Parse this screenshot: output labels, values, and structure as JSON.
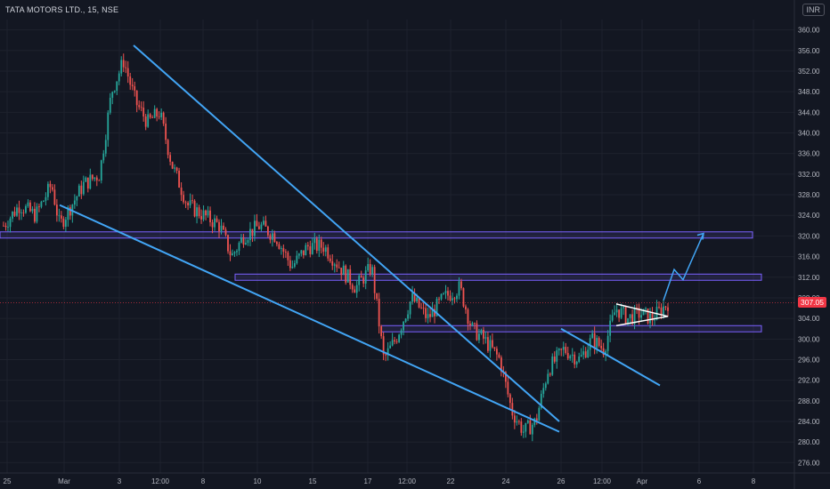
{
  "header": {
    "symbol": "TATA MOTORS LTD., 15, NSE",
    "currency": "INR"
  },
  "colors": {
    "background": "#131722",
    "grid": "#1e222d",
    "up": "#26a69a",
    "down": "#ef5350",
    "trendline": "#42a5f5",
    "zone": "#7b61ff",
    "price_tag": "#f23645"
  },
  "chart_data": {
    "type": "candlestick",
    "ylim": [
      274,
      362
    ],
    "y_ticks": [
      276,
      280,
      284,
      288,
      292,
      296,
      300,
      304,
      308,
      312,
      316,
      320,
      324,
      328,
      332,
      336,
      340,
      344,
      348,
      352,
      356,
      360
    ],
    "y_tick_labels": [
      "276.00",
      "280.00",
      "284.00",
      "288.00",
      "292.00",
      "296.00",
      "300.00",
      "304.00",
      "308.00",
      "312.00",
      "316.00",
      "320.00",
      "324.00",
      "328.00",
      "332.00",
      "336.00",
      "340.00",
      "344.00",
      "348.00",
      "352.00",
      "356.00",
      "360.00"
    ],
    "x_tick_labels": [
      "25",
      "Mar",
      "3",
      "12:00",
      "8",
      "10",
      "15",
      "17",
      "12:00",
      "22",
      "24",
      "26",
      "12:00",
      "Apr",
      "6",
      "8"
    ],
    "last_price": 307.05,
    "last_price_label": "307.05",
    "price_path": [
      [
        0,
        322
      ],
      [
        0.02,
        326
      ],
      [
        0.04,
        324
      ],
      [
        0.06,
        330
      ],
      [
        0.07,
        322
      ],
      [
        0.085,
        326
      ],
      [
        0.1,
        330
      ],
      [
        0.12,
        332
      ],
      [
        0.135,
        348
      ],
      [
        0.15,
        354
      ],
      [
        0.165,
        346
      ],
      [
        0.18,
        342
      ],
      [
        0.195,
        344
      ],
      [
        0.21,
        334
      ],
      [
        0.23,
        326
      ],
      [
        0.25,
        324
      ],
      [
        0.27,
        322
      ],
      [
        0.285,
        316
      ],
      [
        0.3,
        320
      ],
      [
        0.32,
        322
      ],
      [
        0.34,
        320
      ],
      [
        0.36,
        314
      ],
      [
        0.38,
        318
      ],
      [
        0.4,
        318
      ],
      [
        0.42,
        314
      ],
      [
        0.44,
        310
      ],
      [
        0.46,
        314
      ],
      [
        0.475,
        296
      ],
      [
        0.49,
        300
      ],
      [
        0.51,
        308
      ],
      [
        0.53,
        304
      ],
      [
        0.55,
        308
      ],
      [
        0.57,
        310
      ],
      [
        0.585,
        302
      ],
      [
        0.6,
        300
      ],
      [
        0.62,
        296
      ],
      [
        0.635,
        286
      ],
      [
        0.65,
        282
      ],
      [
        0.665,
        284
      ],
      [
        0.68,
        294
      ],
      [
        0.7,
        298
      ],
      [
        0.72,
        296
      ],
      [
        0.735,
        300
      ],
      [
        0.75,
        298
      ],
      [
        0.765,
        306
      ],
      [
        0.78,
        304
      ],
      [
        0.795,
        305
      ],
      [
        0.81,
        304
      ],
      [
        0.83,
        307
      ]
    ],
    "trendlines": [
      {
        "from": [
          "3",
          357
        ],
        "to": [
          "26",
          284
        ]
      },
      {
        "from": [
          "Mar",
          326
        ],
        "to": [
          "26",
          282
        ]
      },
      {
        "from": [
          "26",
          302
        ],
        "to": [
          "Apr",
          291
        ]
      }
    ],
    "zones": [
      {
        "y_low": 319.6,
        "y_high": 320.8
      },
      {
        "y_low": 311.4,
        "y_high": 312.6
      },
      {
        "y_low": 301.4,
        "y_high": 302.6
      }
    ],
    "projection": [
      [
        307.5
      ],
      [
        313.5
      ],
      [
        311.5
      ],
      [
        320.5
      ]
    ]
  }
}
